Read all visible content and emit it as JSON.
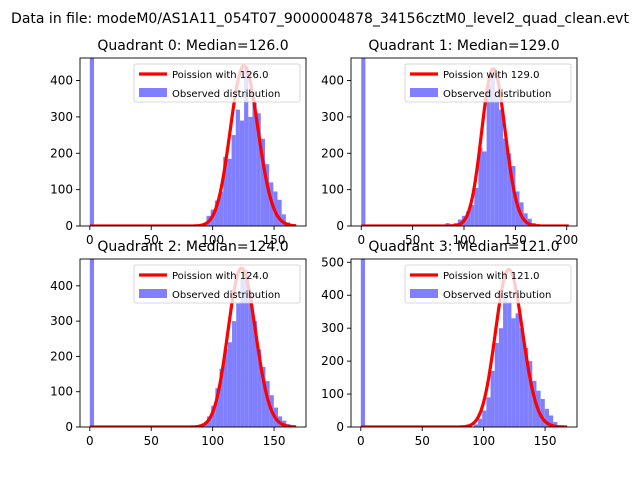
{
  "figure": {
    "suptitle": "Data in file: modeM0/AS1A11_054T07_9000004878_34156cztM0_level2_quad_clean.evt"
  },
  "colors": {
    "poisson_line": "#ff0000",
    "histogram": "#7f7fff",
    "axes": "#000000"
  },
  "chart_data": [
    {
      "type": "bar",
      "title": "Quadrant 0: Median=126.0",
      "median": 126.0,
      "legend": [
        "Poission with 126.0",
        "Observed distribution"
      ],
      "legend_loc": "upper right",
      "xlim": [
        -8,
        176
      ],
      "ylim": [
        0,
        462
      ],
      "xticks": [
        0,
        50,
        100,
        150
      ],
      "yticks": [
        0,
        100,
        200,
        300,
        400
      ],
      "poisson_peak": 440,
      "bin_width": 3.4,
      "bins": [
        [
          0,
          465
        ],
        [
          95,
          28
        ],
        [
          98.4,
          45
        ],
        [
          101.8,
          70
        ],
        [
          105.2,
          95
        ],
        [
          108.6,
          190
        ],
        [
          112,
          185
        ],
        [
          115.4,
          250
        ],
        [
          118.8,
          320
        ],
        [
          122.2,
          290
        ],
        [
          125.6,
          440
        ],
        [
          129,
          300
        ],
        [
          132.4,
          340
        ],
        [
          135.8,
          310
        ],
        [
          139.2,
          240
        ],
        [
          142.6,
          170
        ],
        [
          146,
          120
        ],
        [
          149.4,
          95
        ],
        [
          152.8,
          72
        ],
        [
          156.2,
          32
        ],
        [
          159.6,
          10
        ],
        [
          163,
          3
        ]
      ]
    },
    {
      "type": "bar",
      "title": "Quadrant 1: Median=129.0",
      "median": 129.0,
      "legend": [
        "Poission with 129.0",
        "Observed distribution"
      ],
      "legend_loc": "upper right",
      "xlim": [
        -10,
        210
      ],
      "ylim": [
        0,
        462
      ],
      "xticks": [
        0,
        50,
        100,
        150,
        200
      ],
      "yticks": [
        0,
        100,
        200,
        300,
        400
      ],
      "poisson_peak": 432,
      "bin_width": 4.0,
      "bins": [
        [
          0,
          465
        ],
        [
          82,
          8
        ],
        [
          86,
          5
        ],
        [
          90,
          8
        ],
        [
          94,
          18
        ],
        [
          98,
          28
        ],
        [
          102,
          40
        ],
        [
          106,
          58
        ],
        [
          110,
          105
        ],
        [
          114,
          215
        ],
        [
          118,
          205
        ],
        [
          122,
          390
        ],
        [
          126,
          420
        ],
        [
          130,
          360
        ],
        [
          134,
          320
        ],
        [
          138,
          240
        ],
        [
          142,
          200
        ],
        [
          146,
          165
        ],
        [
          150,
          95
        ],
        [
          154,
          65
        ],
        [
          158,
          35
        ],
        [
          162,
          20
        ],
        [
          166,
          8
        ],
        [
          170,
          5
        ]
      ]
    },
    {
      "type": "bar",
      "title": "Quadrant 2: Median=124.0",
      "median": 124.0,
      "legend": [
        "Poission with 124.0",
        "Observed distribution"
      ],
      "legend_loc": "upper right",
      "xlim": [
        -8,
        176
      ],
      "ylim": [
        0,
        476
      ],
      "xticks": [
        0,
        50,
        100,
        150
      ],
      "yticks": [
        0,
        100,
        200,
        300,
        400
      ],
      "poisson_peak": 450,
      "bin_width": 3.4,
      "bins": [
        [
          0,
          476
        ],
        [
          92,
          8
        ],
        [
          95.4,
          30
        ],
        [
          98.8,
          60
        ],
        [
          102.2,
          110
        ],
        [
          105.6,
          165
        ],
        [
          109,
          220
        ],
        [
          112.4,
          240
        ],
        [
          115.8,
          300
        ],
        [
          119.2,
          350
        ],
        [
          122.6,
          420
        ],
        [
          126,
          445
        ],
        [
          129.4,
          380
        ],
        [
          132.8,
          300
        ],
        [
          136.2,
          220
        ],
        [
          139.6,
          170
        ],
        [
          143,
          130
        ],
        [
          146.4,
          90
        ],
        [
          149.8,
          55
        ],
        [
          153.2,
          30
        ],
        [
          156.6,
          18
        ],
        [
          160,
          8
        ]
      ]
    },
    {
      "type": "bar",
      "title": "Quadrant 3: Median=121.0",
      "median": 121.0,
      "legend": [
        "Poission with 121.0",
        "Observed distribution"
      ],
      "legend_loc": "upper right",
      "xlim": [
        -8,
        176
      ],
      "ylim": [
        0,
        510
      ],
      "xticks": [
        0,
        50,
        100,
        150
      ],
      "yticks": [
        0,
        100,
        200,
        300,
        400,
        500
      ],
      "poisson_peak": 478,
      "bin_width": 3.4,
      "bins": [
        [
          0,
          510
        ],
        [
          92,
          8
        ],
        [
          95.4,
          25
        ],
        [
          98.8,
          50
        ],
        [
          102.2,
          90
        ],
        [
          105.6,
          170
        ],
        [
          109,
          255
        ],
        [
          112.4,
          300
        ],
        [
          115.8,
          400
        ],
        [
          119.2,
          380
        ],
        [
          122.6,
          330
        ],
        [
          126,
          345
        ],
        [
          129.4,
          300
        ],
        [
          132.8,
          240
        ],
        [
          136.2,
          200
        ],
        [
          139.6,
          140
        ],
        [
          143,
          110
        ],
        [
          146.4,
          85
        ],
        [
          149.8,
          55
        ],
        [
          153.2,
          35
        ],
        [
          156.6,
          15
        ],
        [
          160,
          5
        ]
      ]
    }
  ]
}
